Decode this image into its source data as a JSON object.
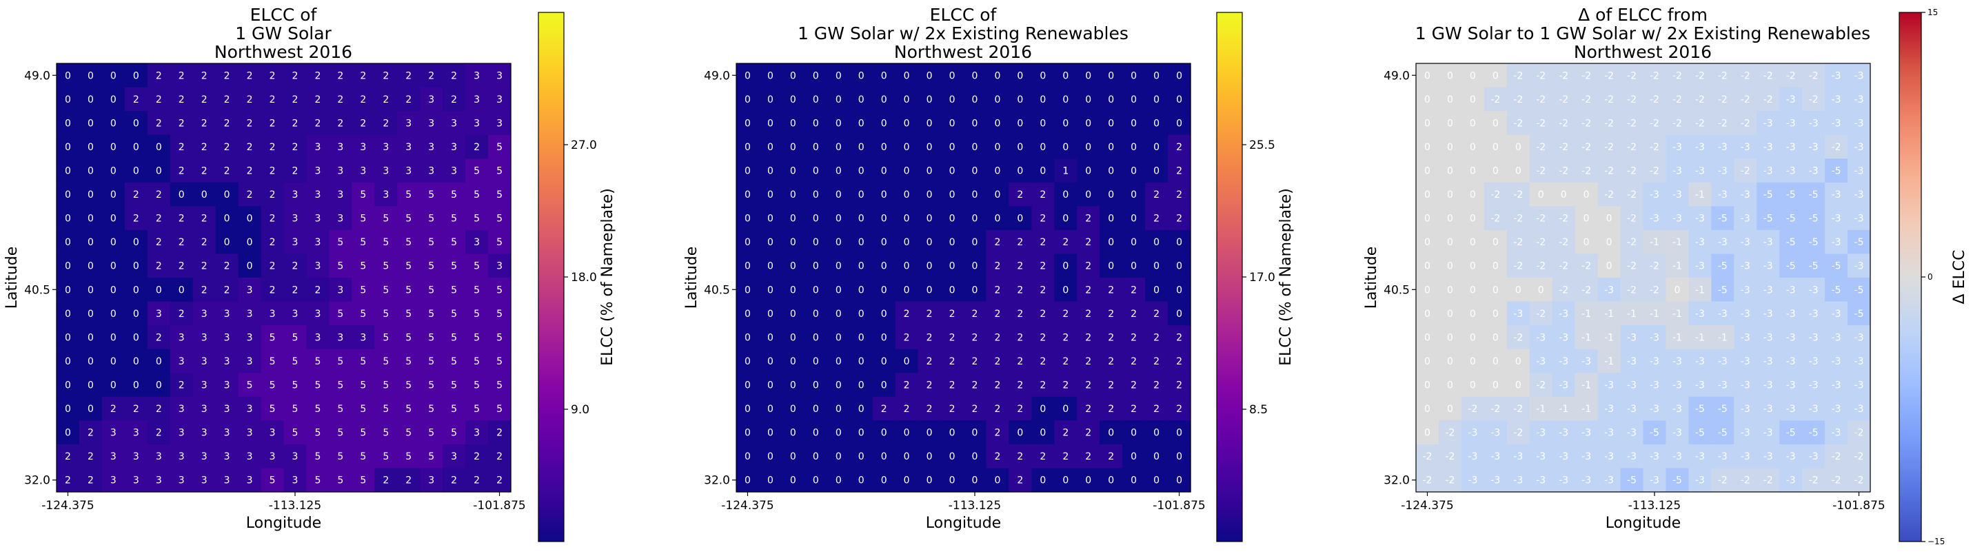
{
  "chart_data": [
    {
      "type": "heatmap",
      "title_lines": [
        "ELCC of",
        "1 GW Solar",
        "Northwest 2016"
      ],
      "xlabel": "Longitude",
      "ylabel": "Latitude",
      "xticks": [
        "-124.375",
        "-113.125",
        "-101.875"
      ],
      "yticks": [
        "49.0",
        "40.5",
        "32.0"
      ],
      "colorbar_label": "ELCC (% of Nameplate)",
      "colorbar_ticks": [
        "9.0",
        "18.0",
        "27.0"
      ],
      "colormap": "plasma",
      "vmin": 0,
      "vmax": 36,
      "rows": [
        [
          0,
          0,
          0,
          0,
          2,
          2,
          2,
          2,
          2,
          2,
          2,
          2,
          2,
          2,
          2,
          2,
          2,
          2,
          3,
          3
        ],
        [
          0,
          0,
          0,
          2,
          2,
          2,
          2,
          2,
          2,
          2,
          2,
          2,
          2,
          2,
          2,
          2,
          3,
          2,
          3,
          3
        ],
        [
          0,
          0,
          0,
          0,
          2,
          2,
          2,
          2,
          2,
          2,
          2,
          2,
          2,
          2,
          2,
          3,
          3,
          3,
          3,
          3
        ],
        [
          0,
          0,
          0,
          0,
          0,
          2,
          2,
          2,
          2,
          2,
          2,
          3,
          3,
          3,
          3,
          3,
          3,
          3,
          2,
          5
        ],
        [
          0,
          0,
          0,
          0,
          0,
          2,
          2,
          2,
          2,
          2,
          2,
          3,
          3,
          3,
          3,
          3,
          3,
          3,
          5,
          5
        ],
        [
          0,
          0,
          0,
          2,
          2,
          0,
          0,
          0,
          2,
          2,
          3,
          3,
          3,
          5,
          3,
          5,
          5,
          5,
          5,
          5
        ],
        [
          0,
          0,
          0,
          2,
          2,
          2,
          2,
          0,
          0,
          2,
          3,
          3,
          3,
          5,
          5,
          5,
          5,
          5,
          5,
          5
        ],
        [
          0,
          0,
          0,
          0,
          2,
          2,
          2,
          0,
          0,
          2,
          3,
          3,
          5,
          5,
          5,
          5,
          5,
          5,
          3,
          5
        ],
        [
          0,
          0,
          0,
          0,
          2,
          2,
          2,
          2,
          0,
          2,
          2,
          3,
          5,
          5,
          5,
          5,
          5,
          5,
          5,
          3
        ],
        [
          0,
          0,
          0,
          0,
          0,
          0,
          2,
          2,
          3,
          2,
          2,
          2,
          3,
          5,
          5,
          5,
          5,
          5,
          5,
          5
        ],
        [
          0,
          0,
          0,
          0,
          3,
          2,
          3,
          3,
          3,
          3,
          3,
          3,
          5,
          5,
          5,
          5,
          5,
          5,
          5,
          5
        ],
        [
          0,
          0,
          0,
          0,
          2,
          3,
          3,
          3,
          3,
          5,
          5,
          3,
          3,
          3,
          5,
          5,
          5,
          5,
          5,
          5
        ],
        [
          0,
          0,
          0,
          0,
          0,
          3,
          3,
          3,
          3,
          5,
          5,
          5,
          5,
          5,
          5,
          5,
          5,
          5,
          5,
          5
        ],
        [
          0,
          0,
          0,
          0,
          0,
          2,
          3,
          3,
          5,
          5,
          5,
          5,
          5,
          5,
          5,
          5,
          5,
          5,
          5,
          5
        ],
        [
          0,
          0,
          2,
          2,
          2,
          3,
          3,
          3,
          3,
          5,
          5,
          5,
          5,
          5,
          5,
          5,
          5,
          5,
          5,
          5
        ],
        [
          0,
          2,
          3,
          3,
          2,
          3,
          3,
          3,
          3,
          3,
          5,
          5,
          5,
          5,
          5,
          5,
          5,
          5,
          3,
          2
        ],
        [
          2,
          2,
          3,
          3,
          3,
          3,
          3,
          3,
          3,
          3,
          3,
          5,
          5,
          5,
          5,
          5,
          5,
          3,
          2,
          2
        ],
        [
          2,
          2,
          3,
          3,
          3,
          3,
          3,
          3,
          3,
          5,
          3,
          5,
          5,
          5,
          2,
          2,
          3,
          2,
          2,
          2
        ]
      ]
    },
    {
      "type": "heatmap",
      "title_lines": [
        "ELCC of",
        "1 GW Solar w/ 2x Existing Renewables",
        "Northwest 2016"
      ],
      "xlabel": "Longitude",
      "ylabel": "Latitude",
      "xticks": [
        "-124.375",
        "-113.125",
        "-101.875"
      ],
      "yticks": [
        "49.0",
        "40.5",
        "32.0"
      ],
      "colorbar_label": "ELCC (% of Nameplate)",
      "colorbar_ticks": [
        "8.5",
        "17.0",
        "25.5"
      ],
      "colormap": "plasma",
      "vmin": 0,
      "vmax": 34,
      "rows": [
        [
          0,
          0,
          0,
          0,
          0,
          0,
          0,
          0,
          0,
          0,
          0,
          0,
          0,
          0,
          0,
          0,
          0,
          0,
          0,
          0
        ],
        [
          0,
          0,
          0,
          0,
          0,
          0,
          0,
          0,
          0,
          0,
          0,
          0,
          0,
          0,
          0,
          0,
          0,
          0,
          0,
          0
        ],
        [
          0,
          0,
          0,
          0,
          0,
          0,
          0,
          0,
          0,
          0,
          0,
          0,
          0,
          0,
          0,
          0,
          0,
          0,
          0,
          0
        ],
        [
          0,
          0,
          0,
          0,
          0,
          0,
          0,
          0,
          0,
          0,
          0,
          0,
          0,
          0,
          0,
          0,
          0,
          0,
          0,
          2
        ],
        [
          0,
          0,
          0,
          0,
          0,
          0,
          0,
          0,
          0,
          0,
          0,
          0,
          0,
          0,
          1,
          0,
          0,
          0,
          0,
          2
        ],
        [
          0,
          0,
          0,
          0,
          0,
          0,
          0,
          0,
          0,
          0,
          0,
          0,
          2,
          2,
          0,
          0,
          0,
          0,
          2,
          2
        ],
        [
          0,
          0,
          0,
          0,
          0,
          0,
          0,
          0,
          0,
          0,
          0,
          0,
          0,
          2,
          0,
          2,
          0,
          0,
          2,
          2
        ],
        [
          0,
          0,
          0,
          0,
          0,
          0,
          0,
          0,
          0,
          0,
          0,
          2,
          2,
          2,
          2,
          2,
          0,
          0,
          0,
          0
        ],
        [
          0,
          0,
          0,
          0,
          0,
          0,
          0,
          0,
          0,
          0,
          0,
          2,
          2,
          2,
          0,
          2,
          0,
          0,
          0,
          0
        ],
        [
          0,
          0,
          0,
          0,
          0,
          0,
          0,
          0,
          0,
          0,
          0,
          2,
          2,
          2,
          0,
          2,
          2,
          2,
          0,
          0
        ],
        [
          0,
          0,
          0,
          0,
          0,
          0,
          0,
          2,
          2,
          2,
          2,
          2,
          2,
          2,
          2,
          2,
          2,
          2,
          2,
          0
        ],
        [
          0,
          0,
          0,
          0,
          0,
          0,
          0,
          2,
          2,
          2,
          2,
          2,
          2,
          2,
          2,
          2,
          2,
          2,
          2,
          2
        ],
        [
          0,
          0,
          0,
          0,
          0,
          0,
          0,
          0,
          2,
          2,
          2,
          2,
          2,
          2,
          2,
          2,
          2,
          2,
          2,
          2
        ],
        [
          0,
          0,
          0,
          0,
          0,
          0,
          0,
          2,
          2,
          2,
          2,
          2,
          2,
          2,
          2,
          2,
          2,
          2,
          2,
          2
        ],
        [
          0,
          0,
          0,
          0,
          0,
          0,
          2,
          2,
          2,
          2,
          2,
          2,
          2,
          0,
          0,
          2,
          2,
          2,
          2,
          2
        ],
        [
          0,
          0,
          0,
          0,
          0,
          0,
          0,
          0,
          0,
          0,
          0,
          2,
          0,
          0,
          2,
          2,
          0,
          0,
          0,
          0
        ],
        [
          0,
          0,
          0,
          0,
          0,
          0,
          0,
          0,
          0,
          0,
          0,
          2,
          2,
          2,
          2,
          2,
          2,
          0,
          0,
          0
        ],
        [
          0,
          0,
          0,
          0,
          0,
          0,
          0,
          0,
          0,
          0,
          0,
          0,
          2,
          0,
          0,
          0,
          0,
          0,
          0,
          0
        ]
      ]
    },
    {
      "type": "heatmap",
      "title_lines": [
        "Δ of ELCC from",
        "1 GW Solar to 1 GW Solar w/ 2x Existing Renewables",
        "Northwest 2016"
      ],
      "xlabel": "Longitude",
      "ylabel": "Latitude",
      "xticks": [
        "-124.375",
        "-113.125",
        "-101.875"
      ],
      "yticks": [
        "49.0",
        "40.5",
        "32.0"
      ],
      "colorbar_label": "Δ ELCC",
      "colorbar_ticks": [
        "−15",
        "0",
        "15"
      ],
      "colormap": "coolwarm",
      "vmin": -15,
      "vmax": 15,
      "rows": [
        [
          0,
          0,
          0,
          0,
          -2,
          -2,
          -2,
          -2,
          -2,
          -2,
          -2,
          -2,
          -2,
          -2,
          -2,
          -2,
          -2,
          -2,
          -3,
          -3
        ],
        [
          0,
          0,
          0,
          -2,
          -2,
          -2,
          -2,
          -2,
          -2,
          -2,
          -2,
          -2,
          -2,
          -2,
          -2,
          -2,
          -3,
          -2,
          -3,
          -3
        ],
        [
          0,
          0,
          0,
          0,
          -2,
          -2,
          -2,
          -2,
          -2,
          -2,
          -2,
          -2,
          -2,
          -2,
          -2,
          -3,
          -3,
          -3,
          -3,
          -3
        ],
        [
          0,
          0,
          0,
          0,
          0,
          -2,
          -2,
          -2,
          -2,
          -2,
          -2,
          -3,
          -3,
          -3,
          -3,
          -3,
          -3,
          -3,
          -2,
          -3
        ],
        [
          0,
          0,
          0,
          0,
          0,
          -2,
          -2,
          -2,
          -2,
          -2,
          -2,
          -3,
          -3,
          -3,
          -2,
          -3,
          -3,
          -3,
          -5,
          -3
        ],
        [
          0,
          0,
          0,
          -2,
          -2,
          0,
          0,
          0,
          -2,
          -2,
          -3,
          -3,
          -1,
          -3,
          -3,
          -5,
          -5,
          -5,
          -3,
          -3
        ],
        [
          0,
          0,
          0,
          -2,
          -2,
          -2,
          -2,
          0,
          0,
          -2,
          -3,
          -3,
          -3,
          -5,
          -3,
          -5,
          -5,
          -5,
          -3,
          -3
        ],
        [
          0,
          0,
          0,
          0,
          -2,
          -2,
          -2,
          0,
          0,
          -2,
          -1,
          -1,
          -3,
          -3,
          -3,
          -3,
          -5,
          -5,
          -3,
          -5
        ],
        [
          0,
          0,
          0,
          0,
          -2,
          -2,
          -2,
          -2,
          0,
          -2,
          -2,
          -1,
          -3,
          -5,
          -3,
          -3,
          -5,
          -5,
          -5,
          -3
        ],
        [
          0,
          0,
          0,
          0,
          0,
          0,
          -2,
          -2,
          -3,
          -2,
          -2,
          0,
          -1,
          -5,
          -3,
          -3,
          -3,
          -3,
          -5,
          -5
        ],
        [
          0,
          0,
          0,
          0,
          -3,
          -2,
          -3,
          -1,
          -1,
          -1,
          -1,
          -1,
          -3,
          -3,
          -3,
          -3,
          -3,
          -3,
          -3,
          -5
        ],
        [
          0,
          0,
          0,
          0,
          -2,
          -3,
          -3,
          -1,
          -1,
          -3,
          -3,
          -1,
          -1,
          -1,
          -3,
          -3,
          -3,
          -3,
          -3,
          -3
        ],
        [
          0,
          0,
          0,
          0,
          0,
          -3,
          -3,
          -3,
          -1,
          -3,
          -3,
          -3,
          -3,
          -3,
          -3,
          -3,
          -3,
          -3,
          -3,
          -3
        ],
        [
          0,
          0,
          0,
          0,
          0,
          -2,
          -3,
          -1,
          -3,
          -3,
          -3,
          -3,
          -3,
          -3,
          -3,
          -3,
          -3,
          -3,
          -3,
          -3
        ],
        [
          0,
          0,
          -2,
          -2,
          -2,
          -1,
          -1,
          -1,
          -3,
          -3,
          -3,
          -3,
          -5,
          -5,
          -3,
          -3,
          -3,
          -3,
          -3,
          -3
        ],
        [
          0,
          -2,
          -3,
          -3,
          -2,
          -3,
          -3,
          -3,
          -3,
          -3,
          -5,
          -3,
          -5,
          -5,
          -3,
          -3,
          -5,
          -5,
          -3,
          -2
        ],
        [
          -2,
          -2,
          -3,
          -3,
          -3,
          -3,
          -3,
          -3,
          -3,
          -3,
          -3,
          -3,
          -3,
          -3,
          -3,
          -3,
          -3,
          -3,
          -2,
          -2
        ],
        [
          -2,
          -2,
          -3,
          -3,
          -3,
          -3,
          -3,
          -3,
          -3,
          -5,
          -3,
          -5,
          -3,
          -2,
          -2,
          -2,
          -3,
          -2,
          -2,
          -2
        ]
      ]
    }
  ]
}
